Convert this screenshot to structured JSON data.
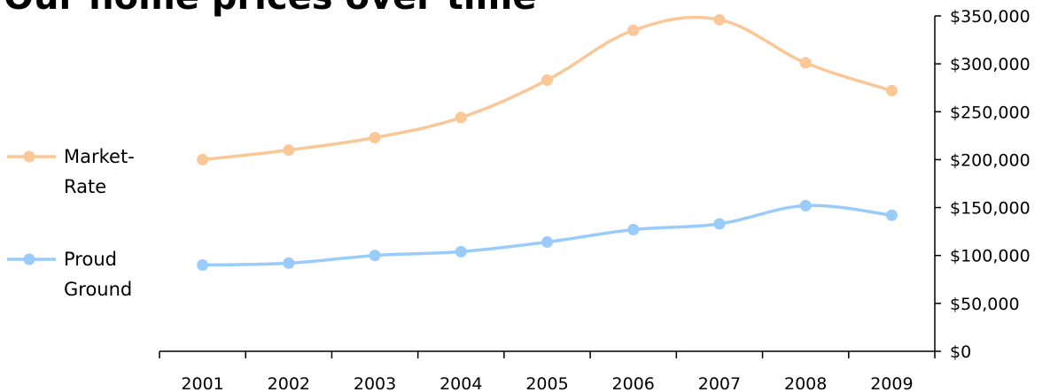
{
  "chart_data": {
    "type": "line",
    "title": "Our home prices over time",
    "categories": [
      "2001",
      "2002",
      "2003",
      "2004",
      "2005",
      "2006",
      "2007",
      "2008",
      "2009"
    ],
    "series": [
      {
        "name": "Market-Rate",
        "legend_lines": [
          "Market-",
          "Rate"
        ],
        "color": "#FAC896",
        "values": [
          200000,
          210000,
          223000,
          244000,
          283000,
          335000,
          346000,
          301000,
          272000
        ]
      },
      {
        "name": "Proud Ground",
        "legend_lines": [
          "Proud",
          "Ground"
        ],
        "color": "#99CCFA",
        "values": [
          90000,
          92000,
          100000,
          104000,
          114000,
          127000,
          133000,
          152000,
          142000
        ]
      }
    ],
    "yaxis": {
      "position": "right",
      "ylim": [
        0,
        350000
      ],
      "ticks": [
        0,
        50000,
        100000,
        150000,
        200000,
        250000,
        300000,
        350000
      ],
      "tick_labels": [
        "$0",
        "$50,000",
        "$100,000",
        "$150,000",
        "$200,000",
        "$250,000",
        "$300,000",
        "$350,000"
      ]
    },
    "xlabel": "",
    "ylabel": "",
    "grid": false,
    "legend_position": "left"
  }
}
